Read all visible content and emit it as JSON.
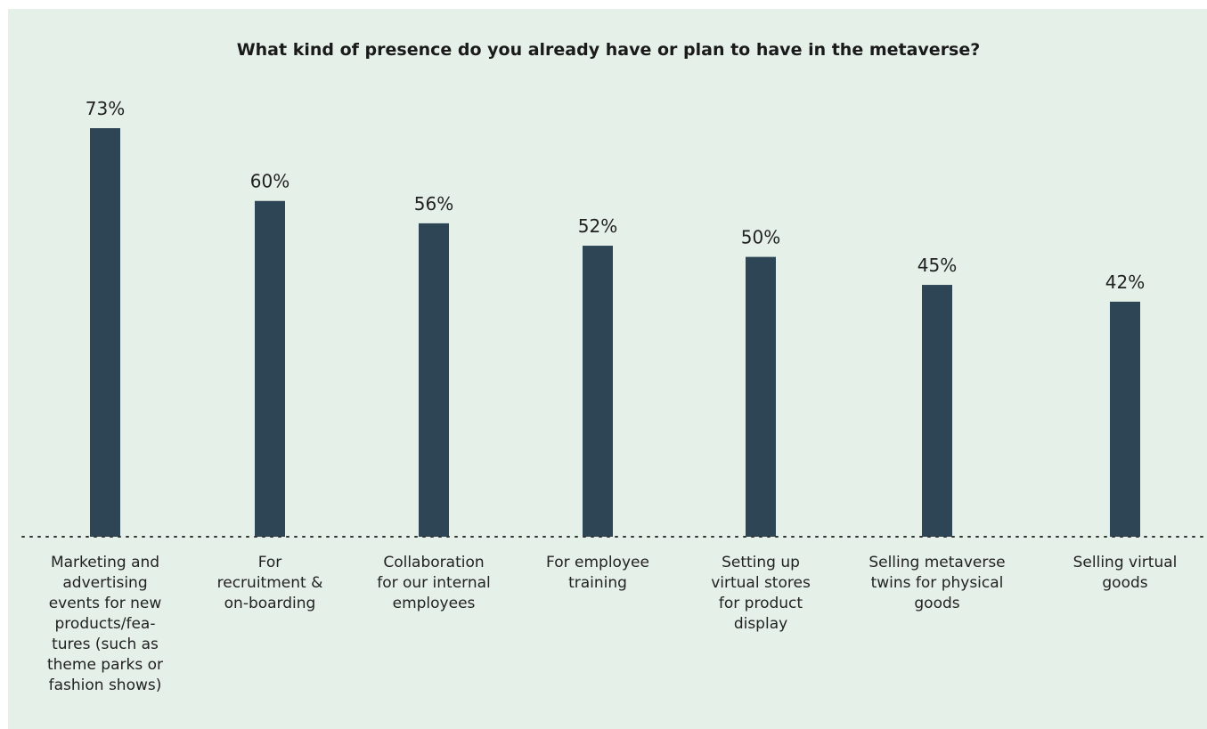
{
  "colors": {
    "background": "#e5f0e8",
    "bar": "#2e4555",
    "text": "#222222"
  },
  "chart_data": {
    "type": "bar",
    "title": "What kind of presence do you already have or plan to have in the metaverse?",
    "categories": [
      "Marketing and advertising events for new products/features (such as theme parks or fashion shows)",
      "For recruitment & on-boarding",
      "Collaboration for our internal employees",
      "For employee training",
      "Setting up virtual stores for product display",
      "Selling metaverse twins for physical goods",
      "Selling virtual goods"
    ],
    "category_lines": [
      [
        "Marketing and",
        "advertising",
        "events for new",
        "products/fea-",
        "tures (such as",
        "theme parks or",
        "fashion shows)"
      ],
      [
        "For",
        "recruitment &",
        "on-boarding"
      ],
      [
        "Collaboration",
        "for our internal",
        "employees"
      ],
      [
        "For employee",
        "training"
      ],
      [
        "Setting up",
        "virtual stores",
        "for product",
        "display"
      ],
      [
        "Selling metaverse",
        "twins for physical",
        "goods"
      ],
      [
        "Selling virtual",
        "goods"
      ]
    ],
    "values": [
      73,
      60,
      56,
      52,
      50,
      45,
      42
    ],
    "data_labels": [
      "73%",
      "60%",
      "56%",
      "52%",
      "50%",
      "45%",
      "42%"
    ],
    "ylim": [
      0,
      80
    ],
    "grid": false,
    "baseline": "dotted"
  }
}
